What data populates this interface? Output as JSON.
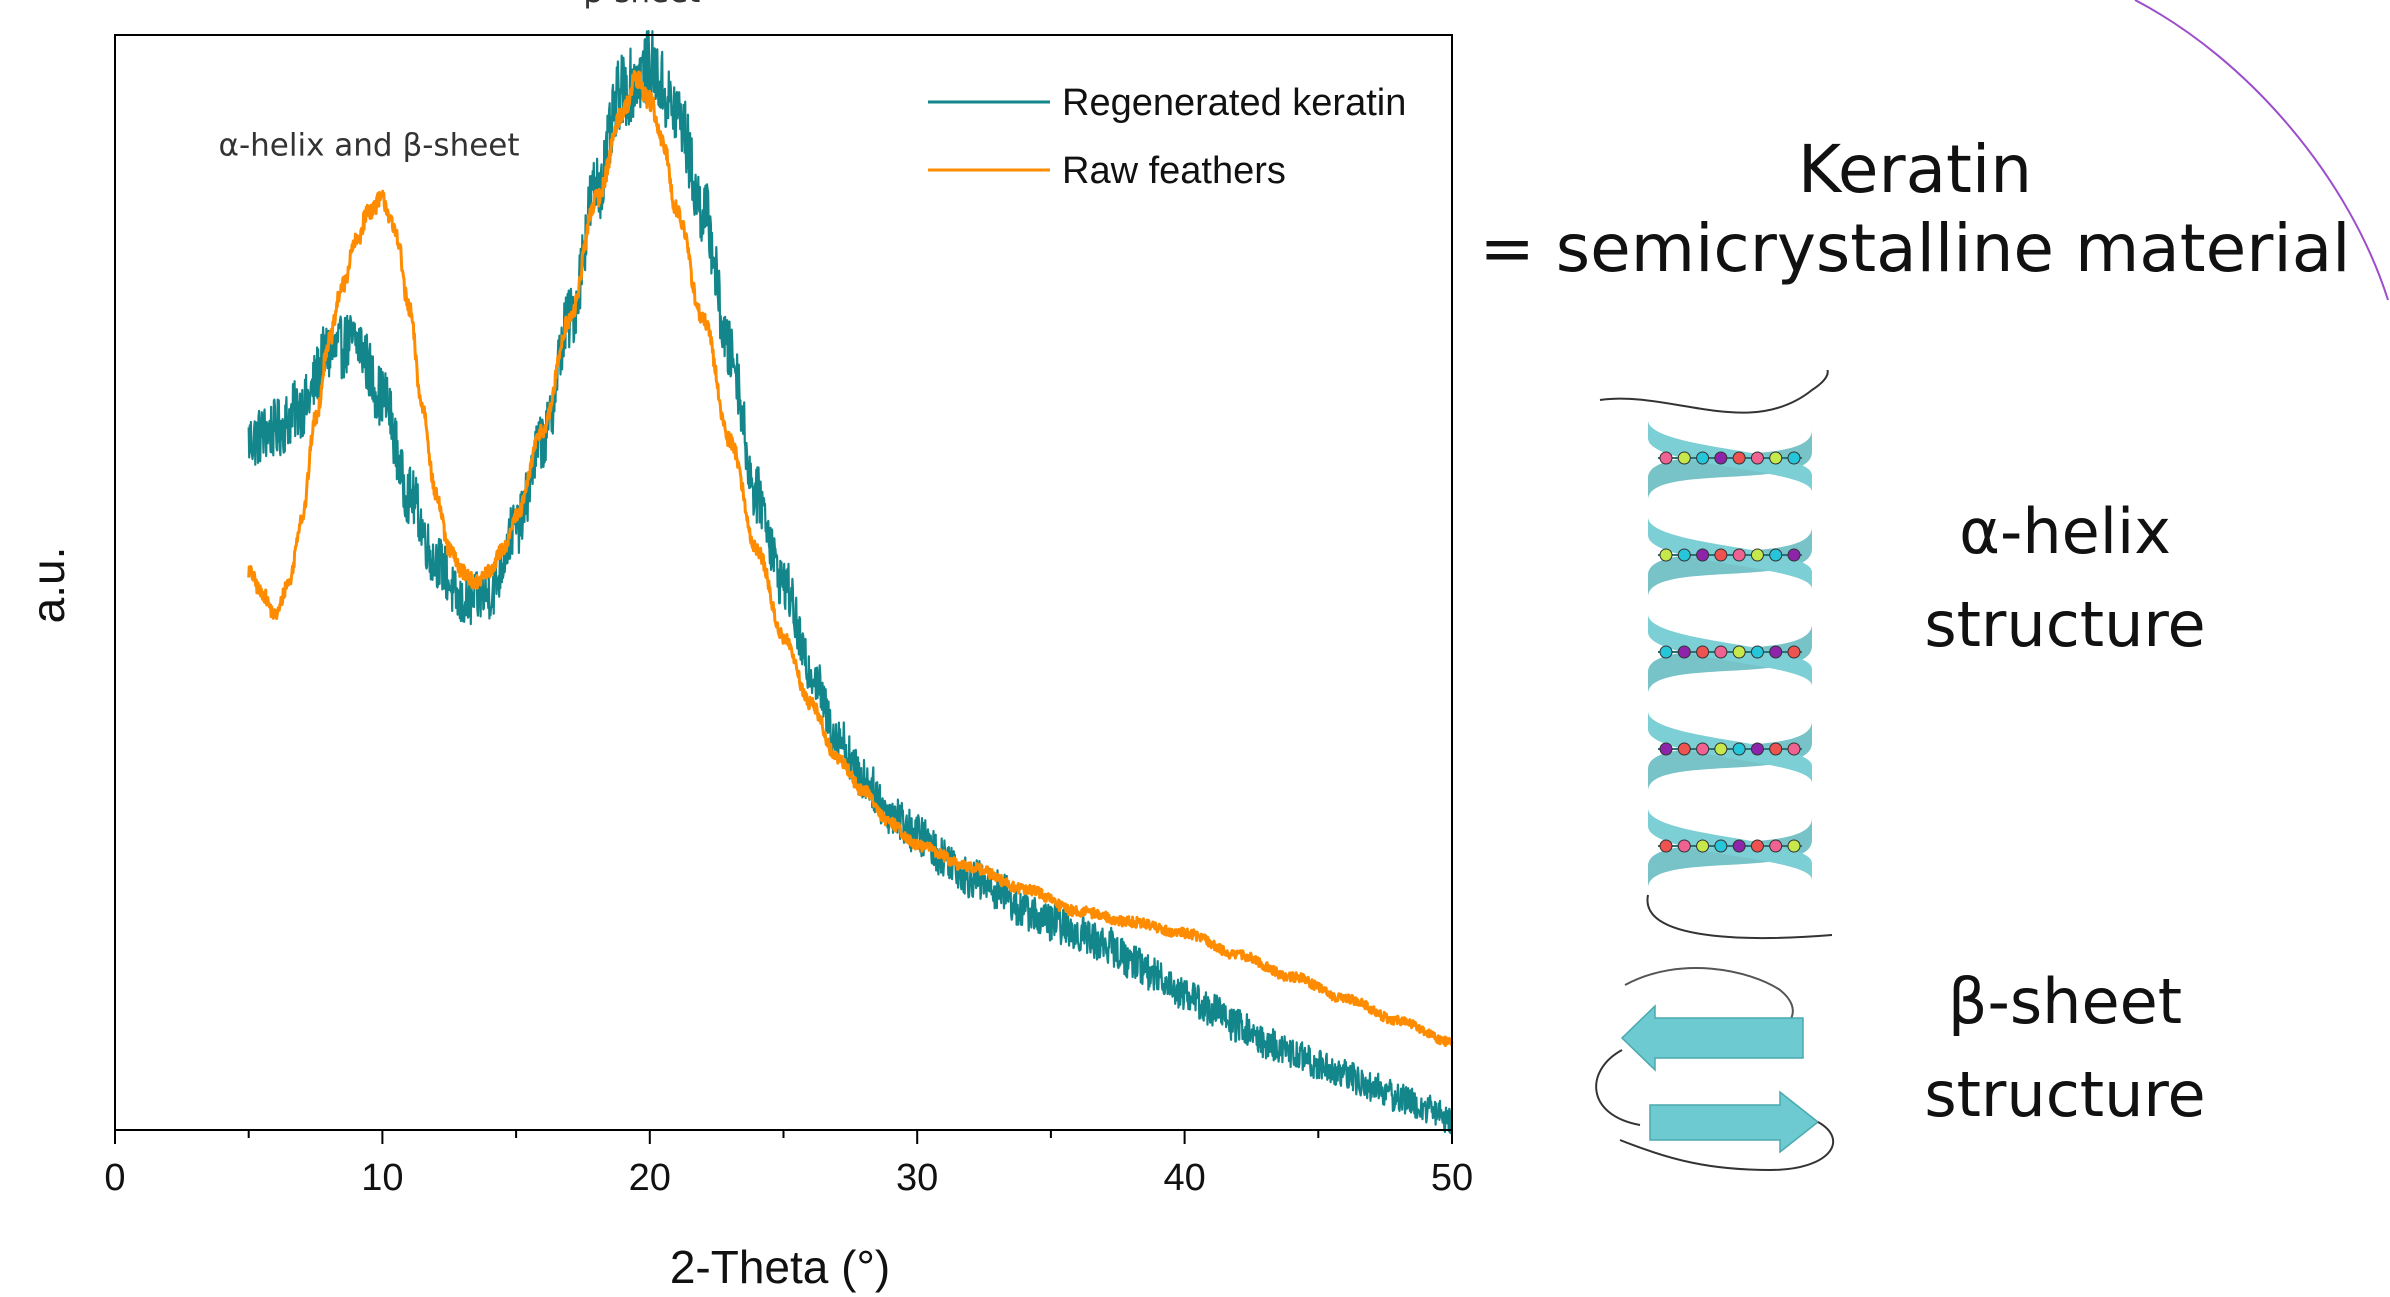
{
  "chart_data": {
    "type": "line",
    "xlabel": "2-Theta (°)",
    "ylabel": "a.u.",
    "xlim": [
      0,
      50
    ],
    "ylim": [
      0,
      1
    ],
    "x_major_ticks": [
      0,
      10,
      20,
      30,
      40,
      50
    ],
    "x_minor_ticks": [
      5,
      15,
      25,
      35,
      45
    ],
    "grid": false,
    "legend_position": "top-right",
    "series": [
      {
        "name": "Regenerated keratin",
        "color": "#12868a",
        "noise": 0.022,
        "x": [
          5,
          6,
          7,
          8,
          9,
          10,
          11,
          12,
          13,
          14,
          15,
          16,
          17,
          18,
          19,
          20,
          21,
          22,
          23,
          24,
          25,
          26,
          27,
          28,
          29,
          30,
          31,
          32,
          33,
          34,
          35,
          36,
          37,
          38,
          39,
          40,
          41,
          42,
          43,
          44,
          45,
          46,
          47,
          48,
          49,
          50
        ],
        "y": [
          0.63,
          0.64,
          0.66,
          0.71,
          0.72,
          0.67,
          0.58,
          0.52,
          0.48,
          0.49,
          0.55,
          0.63,
          0.74,
          0.86,
          0.95,
          0.97,
          0.93,
          0.84,
          0.71,
          0.58,
          0.5,
          0.42,
          0.36,
          0.32,
          0.29,
          0.27,
          0.25,
          0.23,
          0.22,
          0.2,
          0.19,
          0.18,
          0.17,
          0.155,
          0.14,
          0.125,
          0.11,
          0.095,
          0.08,
          0.07,
          0.06,
          0.05,
          0.04,
          0.03,
          0.02,
          0.01
        ]
      },
      {
        "name": "Raw feathers",
        "color": "#ff8c00",
        "noise": 0.006,
        "x": [
          5,
          5.5,
          6,
          6.5,
          7,
          7.5,
          8,
          8.5,
          9,
          9.5,
          10,
          10.5,
          11,
          11.5,
          12,
          12.5,
          13,
          13.5,
          14,
          14.5,
          15,
          16,
          17,
          18,
          19,
          19.5,
          20,
          20.5,
          21,
          22,
          23,
          24,
          25,
          26,
          27,
          28,
          29,
          30,
          32,
          34,
          36,
          38,
          40,
          42,
          44,
          46,
          48,
          50
        ],
        "y": [
          0.51,
          0.49,
          0.47,
          0.5,
          0.56,
          0.65,
          0.72,
          0.77,
          0.81,
          0.84,
          0.85,
          0.82,
          0.75,
          0.66,
          0.58,
          0.53,
          0.51,
          0.5,
          0.51,
          0.53,
          0.56,
          0.64,
          0.74,
          0.85,
          0.93,
          0.96,
          0.94,
          0.9,
          0.84,
          0.74,
          0.63,
          0.53,
          0.45,
          0.39,
          0.34,
          0.31,
          0.28,
          0.26,
          0.24,
          0.22,
          0.2,
          0.19,
          0.18,
          0.16,
          0.14,
          0.12,
          0.1,
          0.08
        ]
      }
    ],
    "annotations": [
      {
        "text": "α-helix and β-sheet",
        "x": 9.5,
        "y": 0.89
      },
      {
        "text": "β-sheet",
        "x": 19.7,
        "y": 1.03
      }
    ]
  },
  "side_panel": {
    "title_line1": "Keratin",
    "title_line2": "= semicrystalline material",
    "alpha_line1": "α-helix",
    "alpha_line2": "structure",
    "beta_line1": "β-sheet",
    "beta_line2": "structure",
    "helix_color": "#7ccfd4",
    "arrow_color": "#6ccad0",
    "bead_colors": [
      "#f06292",
      "#c6e84a",
      "#26c6da",
      "#8e24aa",
      "#ef5350"
    ],
    "accent_arc_color": "#9c4dcc"
  }
}
